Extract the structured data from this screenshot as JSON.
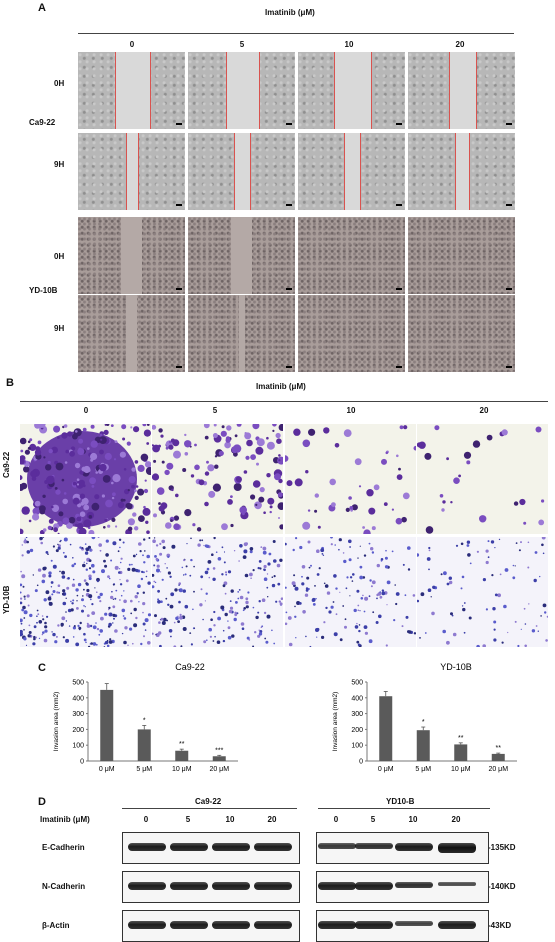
{
  "panel_a": {
    "letter": "A",
    "title": "Imatinib (μM)",
    "concentrations": [
      "0",
      "5",
      "10",
      "20"
    ],
    "cell_lines": [
      "Ca9-22",
      "YD-10B"
    ],
    "times": [
      "0H",
      "9H"
    ],
    "wound_gap": {
      "Ca9-22": {
        "0H": [
          0.32,
          0.3,
          0.34,
          0.24
        ],
        "9H": [
          0.1,
          0.14,
          0.14,
          0.12
        ]
      },
      "YD-10B": {
        "0H": [
          0.2,
          0.2,
          0.0,
          0.0
        ],
        "9H": [
          0.1,
          0.06,
          0.0,
          0.0
        ]
      }
    }
  },
  "panel_b": {
    "letter": "B",
    "title": "Imatinib (μM)",
    "concentrations": [
      "0",
      "5",
      "10",
      "20"
    ],
    "cell_lines": [
      "Ca9-22",
      "YD-10B"
    ]
  },
  "panel_c": {
    "letter": "C",
    "charts_titles": [
      "Ca9-22",
      "YD-10B"
    ]
  },
  "chart_data": [
    {
      "type": "bar",
      "title": "Ca9-22",
      "ylabel": "Invasion area (mm2)",
      "categories": [
        "0 μM",
        "5 μM",
        "10 μM",
        "20 μM"
      ],
      "values": [
        450,
        200,
        65,
        30
      ],
      "errors": [
        40,
        25,
        10,
        6
      ],
      "annotations": [
        "",
        "*",
        "**",
        "***"
      ],
      "ylim": [
        0,
        500
      ],
      "yticks": [
        "0",
        "100",
        "200",
        "300",
        "400",
        "500"
      ],
      "color": "#5a5a5a"
    },
    {
      "type": "bar",
      "title": "YD-10B",
      "ylabel": "Invasion area (mm2)",
      "categories": [
        "0 μM",
        "5 μM",
        "10 μM",
        "20 μM"
      ],
      "values": [
        410,
        195,
        105,
        45
      ],
      "errors": [
        30,
        20,
        10,
        5
      ],
      "annotations": [
        "",
        "*",
        "**",
        "**"
      ],
      "ylim": [
        0,
        500
      ],
      "yticks": [
        "0",
        "100",
        "200",
        "300",
        "400",
        "500"
      ],
      "color": "#5a5a5a"
    }
  ],
  "panel_d": {
    "letter": "D",
    "treatment_label": "Imatinib (μM)",
    "groups": [
      "Ca9-22",
      "YD10-B"
    ],
    "concentrations": [
      "0",
      "5",
      "10",
      "20",
      "0",
      "5",
      "10",
      "20"
    ],
    "rows": [
      {
        "name": "E-Cadherin",
        "size": "-135KD"
      },
      {
        "name": "N-Cadherin",
        "size": "-140KD"
      },
      {
        "name": "β-Actin",
        "size": "-43KD"
      }
    ]
  }
}
